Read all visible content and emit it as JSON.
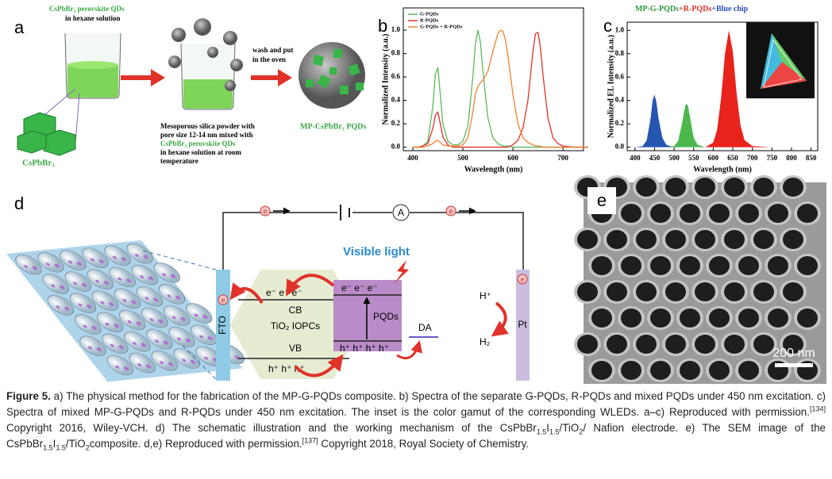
{
  "figure": {
    "a": {
      "label": "a",
      "beaker_text": [
        "CsPbBr₃ perovskite QDs",
        "in hexane solution"
      ],
      "cube_label": "CsPbBr₃",
      "mix_text": [
        "Mesoporous silica powder with",
        "pore size 12-14 nm mixed with",
        "CsPbBr₃ perovskite QDs",
        "in hexane solution at room",
        "temperature"
      ],
      "oven_text": [
        "wash and put",
        "in the oven"
      ],
      "product": "MP-CsPbBr₃ PQDs"
    },
    "b": {
      "label": "b"
    },
    "c": {
      "label": "c"
    },
    "d": {
      "label": "d",
      "electron": "e",
      "ammeter": "A",
      "fto": "FTO",
      "tio2_electrons": "e⁻  e⁻  e⁻",
      "cb": "CB",
      "tio2": "TiO₂ IOPCs",
      "vb": "VB",
      "tio2_holes": "h⁺  h⁺ h⁺",
      "light": "Visible light",
      "pqd_electrons": "e⁻  e⁻   e⁻",
      "pqd": "PQDs",
      "pqd_holes": "h⁺ h⁺ h⁺ h⁺",
      "da": "DA",
      "proton": "H⁺",
      "hydrogen": "H₂",
      "pt": "Pt"
    },
    "e": {
      "label": "e",
      "scale": "200 nm"
    }
  },
  "chart_data": [
    {
      "type": "line",
      "xlabel": "Wavelength (nm)",
      "ylabel": "Normalized Intensity (a.u.)",
      "x": [
        400,
        410,
        420,
        430,
        440,
        445,
        450,
        455,
        460,
        470,
        480,
        490,
        500,
        510,
        520,
        525,
        530,
        535,
        540,
        550,
        560,
        570,
        575,
        580,
        585,
        590,
        600,
        610,
        620,
        630,
        640,
        645,
        650,
        655,
        660,
        670,
        680,
        690,
        700,
        720,
        750
      ],
      "series": [
        {
          "name": "G-PQDs",
          "color": "#5cb85c",
          "values": [
            0,
            0,
            0.01,
            0.05,
            0.35,
            0.62,
            0.68,
            0.45,
            0.2,
            0.05,
            0.02,
            0.02,
            0.05,
            0.18,
            0.6,
            0.88,
            1.0,
            0.9,
            0.65,
            0.25,
            0.08,
            0.03,
            0.02,
            0.01,
            0.01,
            0.01,
            0,
            0,
            0,
            0,
            0,
            0,
            0,
            0,
            0,
            0,
            0,
            0,
            0,
            0,
            0
          ]
        },
        {
          "name": "R-PQDs",
          "color": "#e0322a",
          "values": [
            0,
            0,
            0.01,
            0.03,
            0.16,
            0.27,
            0.3,
            0.2,
            0.09,
            0.02,
            0,
            0,
            0,
            0,
            0,
            0,
            0,
            0,
            0,
            0,
            0,
            0,
            0,
            0,
            0,
            0,
            0.02,
            0.06,
            0.16,
            0.4,
            0.82,
            0.97,
            0.98,
            0.85,
            0.62,
            0.25,
            0.08,
            0.03,
            0.01,
            0,
            0
          ]
        },
        {
          "name": "G-PQDs + R-PQDs",
          "color": "#f08030",
          "values": [
            0,
            0,
            0,
            0.01,
            0.03,
            0.05,
            0.06,
            0.04,
            0.02,
            0.01,
            0.01,
            0.01,
            0.02,
            0.08,
            0.3,
            0.45,
            0.52,
            0.55,
            0.57,
            0.65,
            0.82,
            0.97,
            1.0,
            0.99,
            0.92,
            0.78,
            0.45,
            0.2,
            0.08,
            0.04,
            0.02,
            0.01,
            0.01,
            0.01,
            0,
            0,
            0,
            0,
            0,
            0,
            0
          ]
        }
      ],
      "xlim": [
        381,
        741
      ],
      "xticks": [
        400,
        500,
        600,
        700
      ],
      "ylim": [
        -0.03,
        1.19
      ],
      "yticks": [
        {
          "value": 0,
          "label": "0.0"
        },
        0.2,
        0.4,
        0.6,
        0.8,
        {
          "value": 1,
          "label": "1.0"
        }
      ],
      "legend": "upper left"
    },
    {
      "type": "area",
      "title": [
        "MP-G-PQDs",
        "+R-PQDs",
        "+Blue chip"
      ],
      "title_colors": [
        "#2e9a3e",
        "#e0322a",
        "#2a4fc0"
      ],
      "xlabel": "Wavelength (nm)",
      "ylabel": "Normalized EL Intensity (a.u.)",
      "x": [
        400,
        420,
        430,
        440,
        445,
        450,
        455,
        460,
        470,
        480,
        500,
        510,
        520,
        525,
        530,
        535,
        540,
        550,
        560,
        580,
        600,
        610,
        620,
        630,
        640,
        650,
        660,
        670,
        680,
        700,
        750,
        800,
        850
      ],
      "series": [
        {
          "color": "#2455b0",
          "values": [
            0,
            0.01,
            0.06,
            0.25,
            0.4,
            0.45,
            0.38,
            0.25,
            0.08,
            0.02,
            0,
            0,
            0,
            0,
            0,
            0,
            0,
            0,
            0,
            0,
            0,
            0,
            0,
            0,
            0,
            0,
            0,
            0,
            0,
            0,
            0,
            0,
            0
          ]
        },
        {
          "color": "#4cb84c",
          "values": [
            0,
            0,
            0,
            0,
            0,
            0,
            0,
            0,
            0,
            0,
            0.01,
            0.05,
            0.2,
            0.3,
            0.37,
            0.36,
            0.27,
            0.08,
            0.02,
            0,
            0,
            0,
            0,
            0,
            0,
            0,
            0,
            0,
            0,
            0,
            0,
            0,
            0
          ]
        },
        {
          "color": "#e8231c",
          "values": [
            0,
            0,
            0,
            0,
            0,
            0,
            0,
            0,
            0,
            0,
            0,
            0,
            0,
            0,
            0,
            0,
            0,
            0,
            0,
            0,
            0.04,
            0.15,
            0.42,
            0.8,
            1.0,
            0.82,
            0.45,
            0.18,
            0.06,
            0.01,
            0,
            0,
            0
          ]
        }
      ],
      "xlim": [
        380,
        867
      ],
      "xticks": [
        400,
        450,
        500,
        550,
        600,
        650,
        700,
        750,
        800,
        850
      ],
      "ylim": [
        -0.03,
        1.07
      ],
      "yticks": [
        {
          "value": 0,
          "label": "0.0"
        },
        0.2,
        0.4,
        0.6,
        0.8,
        {
          "value": 1,
          "label": "1.0"
        }
      ]
    }
  ],
  "caption": {
    "label": "Figure 5.",
    "parts": [
      " a) The physical method for the fabrication of the MP-G-PQDs composite. b) Spectra of the separate G-PQDs, R-PQDs and mixed PQDs under 450 nm excitation. c) Spectra of mixed MP-G-PQDs and R-PQDs under 450 nm excitation. The inset is the color gamut of the corresponding WLEDs. a–c) Reproduced with permission.",
      "[134]",
      " Copyright 2016, Wiley-VCH. d) The schematic illustration and the working mechanism of the CsPbBr",
      "1.5",
      "I",
      "1.5",
      "/TiO",
      "2",
      "/ Nafion electrode. e) The SEM image of the CsPbBr",
      "1.5",
      "I",
      "1.5",
      "/TiO",
      "2",
      "composite. d,e) Reproduced with permission.",
      "[137]",
      " Copyright 2018, Royal Society of Chemistry."
    ]
  }
}
